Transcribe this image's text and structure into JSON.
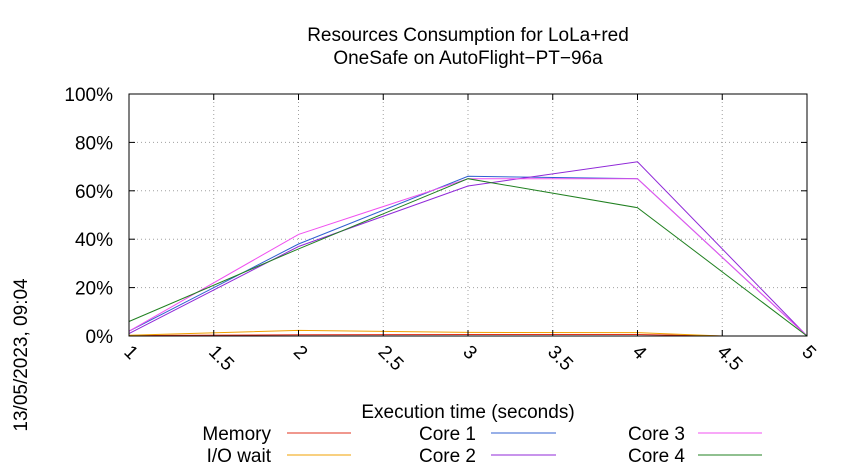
{
  "chart_data": {
    "type": "line",
    "title": [
      "Resources Consumption for LoLa+red",
      "OneSafe on AutoFlight−PT−96a"
    ],
    "xlabel": "Execution time (seconds)",
    "ylabel": "",
    "timestamp": "13/05/2023, 09:04",
    "xlim": [
      1,
      5
    ],
    "ylim": [
      0,
      100
    ],
    "x_ticks": [
      1,
      1.5,
      2,
      2.5,
      3,
      3.5,
      4,
      4.5,
      5
    ],
    "x_tick_labels": [
      "1",
      "1.5",
      "2",
      "2.5",
      "3",
      "3.5",
      "4",
      "4.5",
      "5"
    ],
    "y_ticks": [
      0,
      20,
      40,
      60,
      80,
      100
    ],
    "y_tick_labels": [
      "0%",
      "20%",
      "40%",
      "60%",
      "80%",
      "100%"
    ],
    "grid": true,
    "legend_position": "bottom",
    "series": [
      {
        "name": "Memory",
        "color": "#e0301e",
        "x": [
          1,
          2,
          3,
          4,
          4.5,
          5
        ],
        "y": [
          0.2,
          0.5,
          0.6,
          0.6,
          0,
          0
        ]
      },
      {
        "name": "I/O wait",
        "color": "#f0a000",
        "x": [
          1,
          2,
          3,
          4,
          4.5,
          5
        ],
        "y": [
          0.3,
          2.3,
          1.5,
          1.4,
          0,
          0
        ]
      },
      {
        "name": "Core 1",
        "color": "#3060d0",
        "x": [
          1,
          2,
          3,
          4,
          5
        ],
        "y": [
          2,
          38,
          66,
          65,
          0
        ]
      },
      {
        "name": "Core 2",
        "color": "#9028d8",
        "x": [
          1,
          2,
          3,
          4,
          5
        ],
        "y": [
          1,
          37,
          62,
          72,
          0
        ]
      },
      {
        "name": "Core 3",
        "color": "#f050f0",
        "x": [
          1,
          2,
          3,
          4,
          5
        ],
        "y": [
          2,
          42,
          65,
          65,
          0
        ]
      },
      {
        "name": "Core 4",
        "color": "#208020",
        "x": [
          1,
          2,
          3,
          4,
          5
        ],
        "y": [
          6,
          36,
          65,
          53,
          0
        ]
      }
    ]
  }
}
